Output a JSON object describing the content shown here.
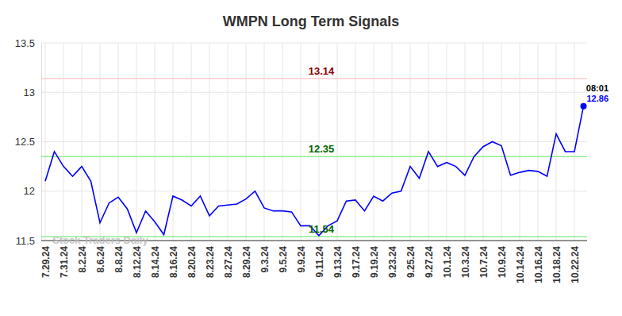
{
  "chart_data": {
    "type": "line",
    "title": "WMPN Long Term Signals",
    "categories": [
      "7.29.24",
      null,
      "7.31.24",
      null,
      "8.2.24",
      null,
      "8.6.24",
      null,
      "8.8.24",
      null,
      "8.12.24",
      null,
      "8.14.24",
      null,
      "8.16.24",
      null,
      "8.20.24",
      null,
      "8.23.24",
      null,
      "8.27.24",
      null,
      "8.29.24",
      null,
      "9.3.24",
      null,
      "9.5.24",
      null,
      "9.9.24",
      null,
      "9.11.24",
      null,
      "9.13.24",
      null,
      "9.17.24",
      null,
      "9.19.24",
      null,
      "9.23.24",
      null,
      "9.25.24",
      null,
      "9.27.24",
      null,
      "10.1.24",
      null,
      "10.3.24",
      null,
      "10.7.24",
      null,
      "10.9.24",
      null,
      "10.14.24",
      null,
      "10.16.24",
      null,
      "10.18.24",
      null,
      "10.22.24",
      null
    ],
    "series": [
      {
        "color": "#0000ff",
        "values": [
          12.1,
          12.4,
          12.25,
          12.15,
          12.25,
          12.1,
          11.68,
          11.88,
          11.94,
          11.82,
          11.58,
          11.8,
          11.69,
          11.56,
          11.95,
          11.91,
          11.85,
          11.95,
          11.75,
          11.85,
          11.86,
          11.87,
          11.92,
          12.0,
          11.83,
          11.8,
          11.8,
          11.79,
          11.65,
          11.65,
          11.55,
          11.65,
          11.7,
          11.9,
          11.91,
          11.8,
          11.95,
          11.9,
          11.98,
          12.0,
          12.25,
          12.13,
          12.4,
          12.25,
          12.29,
          12.25,
          12.16,
          12.35,
          12.45,
          12.5,
          12.46,
          12.16,
          12.19,
          12.21,
          12.2,
          12.15,
          12.58,
          12.4,
          12.4,
          12.86
        ]
      }
    ],
    "ylim": [
      11.5,
      13.5
    ],
    "yticks": [
      11.5,
      12,
      12.5,
      13,
      13.5
    ],
    "grid": true,
    "reference_lines": [
      {
        "value": 13.14,
        "color": "#ffcccc",
        "text_color": "#8b0000"
      },
      {
        "value": 12.35,
        "color": "#90ee90",
        "text_color": "#006400"
      },
      {
        "value": 11.54,
        "color": "#90ee90",
        "text_color": "#006400"
      }
    ],
    "last_time": "08:01",
    "watermark": "Stock Traders Daily"
  }
}
